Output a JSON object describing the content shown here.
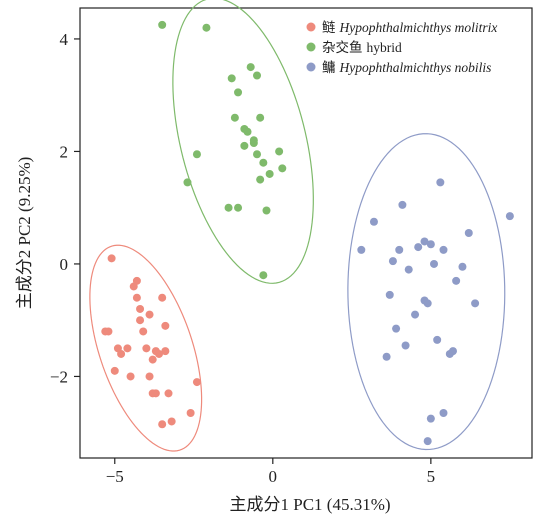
{
  "chart_data": {
    "type": "scatter",
    "xlabel": "主成分1 PC1 (45.31%)",
    "ylabel": "主成分2 PC2 (9.25%)",
    "xlim": [
      -6.1,
      8.2
    ],
    "ylim": [
      -3.45,
      4.55
    ],
    "xticks": [
      -5,
      0,
      5
    ],
    "yticks": [
      -2,
      0,
      2,
      4
    ],
    "grid": false,
    "legend_position": "top-right",
    "series": [
      {
        "name_cn": "鲢",
        "name_latin": "Hypophthalmichthys molitrix",
        "color": "#ee8a7c",
        "ellipse_color": "#ee8a7c",
        "x": [
          -5.1,
          -5.3,
          -5.2,
          -4.9,
          -5.0,
          -4.8,
          -4.6,
          -4.5,
          -4.4,
          -4.3,
          -4.1,
          -4.2,
          -4.0,
          -3.9,
          -3.8,
          -3.7,
          -3.6,
          -3.5,
          -3.4,
          -3.3,
          -3.2,
          -3.8,
          -3.5,
          -3.7,
          -2.4,
          -2.6,
          -4.3,
          -4.2,
          -3.9,
          -3.4
        ],
        "y": [
          0.1,
          -1.2,
          -1.2,
          -1.5,
          -1.9,
          -1.6,
          -1.5,
          -2.0,
          -0.4,
          -0.6,
          -1.2,
          -0.8,
          -1.5,
          -0.9,
          -1.7,
          -2.3,
          -1.6,
          -0.6,
          -1.1,
          -2.3,
          -2.8,
          -2.3,
          -2.85,
          -1.55,
          -2.1,
          -2.65,
          -0.3,
          -1.0,
          -2.0,
          -1.55
        ]
      },
      {
        "name_cn": "杂交鱼",
        "name_latin": "hybrid",
        "color": "#7fba6b",
        "ellipse_color": "#7fba6b",
        "x": [
          -3.5,
          -2.1,
          -1.3,
          -1.1,
          -0.7,
          -0.5,
          -0.4,
          -0.9,
          -0.8,
          -0.6,
          -1.2,
          -0.5,
          -0.3,
          -0.1,
          0.2,
          0.3,
          -2.4,
          -2.7,
          -1.1,
          -0.2,
          -0.4,
          -0.6,
          -0.9,
          -1.4,
          -0.3
        ],
        "y": [
          4.25,
          4.2,
          3.3,
          3.05,
          3.5,
          3.35,
          2.6,
          2.4,
          2.35,
          2.15,
          2.6,
          1.95,
          1.8,
          1.6,
          2.0,
          1.7,
          1.95,
          1.45,
          1.0,
          0.95,
          1.5,
          2.2,
          2.1,
          1.0,
          -0.2
        ]
      },
      {
        "name_cn": "鳙",
        "name_latin": "Hypophthalmichthys nobilis",
        "color": "#8e9bc7",
        "ellipse_color": "#8e9bc7",
        "x": [
          2.8,
          3.2,
          4.1,
          5.3,
          7.5,
          6.2,
          3.8,
          4.0,
          4.3,
          4.6,
          4.8,
          5.0,
          5.1,
          5.4,
          5.8,
          6.0,
          6.4,
          3.7,
          3.9,
          4.5,
          4.9,
          5.2,
          5.6,
          4.2,
          5.0,
          5.4,
          4.9,
          4.8,
          5.7,
          3.6
        ],
        "y": [
          0.25,
          0.75,
          1.05,
          1.45,
          0.85,
          0.55,
          0.05,
          0.25,
          -0.1,
          0.3,
          0.4,
          0.35,
          0.0,
          0.25,
          -0.3,
          -0.05,
          -0.7,
          -0.55,
          -1.15,
          -0.9,
          -0.7,
          -1.35,
          -1.6,
          -1.45,
          -2.75,
          -2.65,
          -3.15,
          -0.65,
          -1.55,
          -1.65
        ]
      }
    ]
  }
}
